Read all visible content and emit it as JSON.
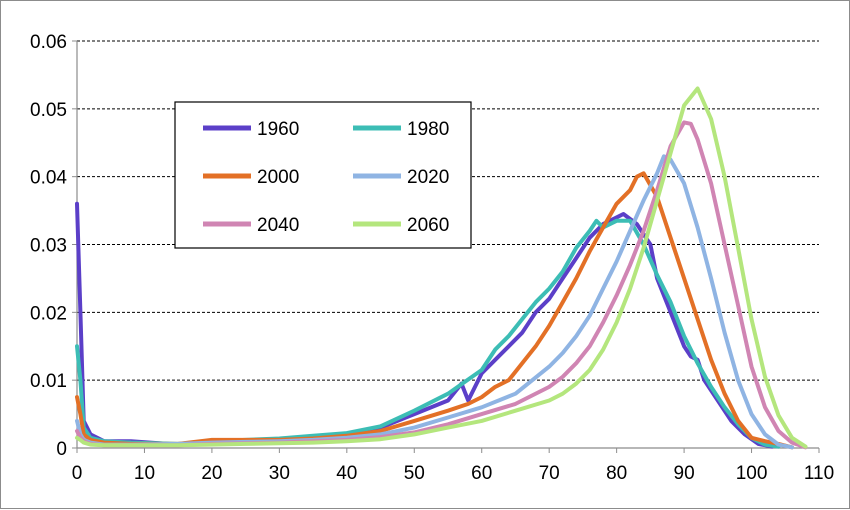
{
  "chart_data": {
    "type": "line",
    "title": "",
    "xlabel": "",
    "ylabel": "",
    "xlim": [
      0,
      110
    ],
    "ylim": [
      0,
      0.06
    ],
    "x_ticks": [
      "0",
      "10",
      "20",
      "30",
      "40",
      "50",
      "60",
      "70",
      "80",
      "90",
      "100",
      "110"
    ],
    "y_ticks": [
      "0",
      "0.01",
      "0.02",
      "0.03",
      "0.04",
      "0.05",
      "0.06"
    ],
    "grid": "horizontal dashed",
    "legend_position": "inside upper-left, 3 rows x 2 columns",
    "series": [
      {
        "name": "1960",
        "color": "#5b3fc8",
        "points": [
          [
            0,
            0.036
          ],
          [
            0.5,
            0.02
          ],
          [
            1,
            0.004
          ],
          [
            2,
            0.002
          ],
          [
            4,
            0.001
          ],
          [
            8,
            0.001
          ],
          [
            15,
            0.0005
          ],
          [
            20,
            0.0008
          ],
          [
            25,
            0.001
          ],
          [
            30,
            0.0012
          ],
          [
            35,
            0.0015
          ],
          [
            40,
            0.002
          ],
          [
            45,
            0.003
          ],
          [
            50,
            0.005
          ],
          [
            55,
            0.007
          ],
          [
            57,
            0.0095
          ],
          [
            58,
            0.007
          ],
          [
            60,
            0.011
          ],
          [
            62,
            0.013
          ],
          [
            64,
            0.015
          ],
          [
            66,
            0.017
          ],
          [
            68,
            0.02
          ],
          [
            70,
            0.022
          ],
          [
            72,
            0.025
          ],
          [
            74,
            0.028
          ],
          [
            76,
            0.031
          ],
          [
            78,
            0.033
          ],
          [
            80,
            0.034
          ],
          [
            81,
            0.0345
          ],
          [
            83,
            0.033
          ],
          [
            85,
            0.03
          ],
          [
            86,
            0.025
          ],
          [
            88,
            0.02
          ],
          [
            90,
            0.015
          ],
          [
            91,
            0.0135
          ],
          [
            92,
            0.013
          ],
          [
            93,
            0.01
          ],
          [
            95,
            0.007
          ],
          [
            97,
            0.004
          ],
          [
            99,
            0.002
          ],
          [
            101,
            0.0006
          ],
          [
            103,
            0.0002
          ]
        ]
      },
      {
        "name": "1980",
        "color": "#3cbdb5",
        "points": [
          [
            0,
            0.015
          ],
          [
            0.5,
            0.01
          ],
          [
            1,
            0.003
          ],
          [
            2,
            0.0015
          ],
          [
            4,
            0.001
          ],
          [
            8,
            0.0008
          ],
          [
            15,
            0.0006
          ],
          [
            20,
            0.001
          ],
          [
            25,
            0.0012
          ],
          [
            30,
            0.0014
          ],
          [
            35,
            0.0018
          ],
          [
            40,
            0.0022
          ],
          [
            45,
            0.0032
          ],
          [
            50,
            0.0055
          ],
          [
            55,
            0.008
          ],
          [
            60,
            0.0115
          ],
          [
            62,
            0.0145
          ],
          [
            64,
            0.0165
          ],
          [
            66,
            0.019
          ],
          [
            68,
            0.0215
          ],
          [
            70,
            0.0235
          ],
          [
            72,
            0.026
          ],
          [
            74,
            0.0295
          ],
          [
            76,
            0.032
          ],
          [
            77,
            0.0335
          ],
          [
            78,
            0.0325
          ],
          [
            80,
            0.0335
          ],
          [
            82,
            0.0335
          ],
          [
            84,
            0.03
          ],
          [
            86,
            0.0255
          ],
          [
            88,
            0.0215
          ],
          [
            90,
            0.0165
          ],
          [
            92,
            0.0125
          ],
          [
            94,
            0.009
          ],
          [
            96,
            0.006
          ],
          [
            98,
            0.0035
          ],
          [
            100,
            0.0015
          ],
          [
            102,
            0.0005
          ],
          [
            104,
            0.0002
          ]
        ]
      },
      {
        "name": "2000",
        "color": "#e37026",
        "points": [
          [
            0,
            0.0075
          ],
          [
            0.5,
            0.005
          ],
          [
            1,
            0.002
          ],
          [
            2,
            0.0012
          ],
          [
            4,
            0.0008
          ],
          [
            8,
            0.0006
          ],
          [
            15,
            0.0006
          ],
          [
            20,
            0.0012
          ],
          [
            25,
            0.0012
          ],
          [
            30,
            0.0012
          ],
          [
            35,
            0.0014
          ],
          [
            40,
            0.0018
          ],
          [
            45,
            0.0025
          ],
          [
            50,
            0.004
          ],
          [
            55,
            0.0055
          ],
          [
            58,
            0.0065
          ],
          [
            60,
            0.0075
          ],
          [
            62,
            0.009
          ],
          [
            64,
            0.01
          ],
          [
            66,
            0.0125
          ],
          [
            68,
            0.015
          ],
          [
            70,
            0.018
          ],
          [
            72,
            0.0215
          ],
          [
            74,
            0.025
          ],
          [
            76,
            0.029
          ],
          [
            78,
            0.0325
          ],
          [
            80,
            0.036
          ],
          [
            82,
            0.038
          ],
          [
            83,
            0.04
          ],
          [
            84,
            0.0405
          ],
          [
            86,
            0.037
          ],
          [
            88,
            0.031
          ],
          [
            90,
            0.025
          ],
          [
            92,
            0.019
          ],
          [
            94,
            0.013
          ],
          [
            96,
            0.008
          ],
          [
            98,
            0.004
          ],
          [
            100,
            0.0015
          ],
          [
            102,
            0.001
          ],
          [
            104,
            0.0006
          ],
          [
            106,
            0.0001
          ]
        ]
      },
      {
        "name": "2020",
        "color": "#8fb4e3",
        "points": [
          [
            0,
            0.004
          ],
          [
            0.5,
            0.002
          ],
          [
            1,
            0.0012
          ],
          [
            2,
            0.0008
          ],
          [
            4,
            0.0005
          ],
          [
            8,
            0.0005
          ],
          [
            15,
            0.0006
          ],
          [
            20,
            0.0008
          ],
          [
            25,
            0.0009
          ],
          [
            30,
            0.001
          ],
          [
            35,
            0.0012
          ],
          [
            40,
            0.0015
          ],
          [
            45,
            0.002
          ],
          [
            50,
            0.003
          ],
          [
            55,
            0.0045
          ],
          [
            60,
            0.006
          ],
          [
            65,
            0.008
          ],
          [
            70,
            0.012
          ],
          [
            72,
            0.014
          ],
          [
            74,
            0.0165
          ],
          [
            76,
            0.0195
          ],
          [
            78,
            0.0235
          ],
          [
            80,
            0.0275
          ],
          [
            82,
            0.032
          ],
          [
            84,
            0.0365
          ],
          [
            86,
            0.0405
          ],
          [
            87,
            0.043
          ],
          [
            88,
            0.0425
          ],
          [
            90,
            0.039
          ],
          [
            92,
            0.0325
          ],
          [
            94,
            0.025
          ],
          [
            96,
            0.017
          ],
          [
            98,
            0.01
          ],
          [
            100,
            0.005
          ],
          [
            102,
            0.002
          ],
          [
            104,
            0.0005
          ],
          [
            106,
            0.0001
          ]
        ]
      },
      {
        "name": "2040",
        "color": "#d085b3",
        "points": [
          [
            0,
            0.0025
          ],
          [
            0.5,
            0.0015
          ],
          [
            1,
            0.001
          ],
          [
            2,
            0.0006
          ],
          [
            4,
            0.0004
          ],
          [
            8,
            0.0004
          ],
          [
            15,
            0.0004
          ],
          [
            20,
            0.0006
          ],
          [
            25,
            0.0007
          ],
          [
            30,
            0.0008
          ],
          [
            35,
            0.001
          ],
          [
            40,
            0.0012
          ],
          [
            45,
            0.0016
          ],
          [
            50,
            0.0023
          ],
          [
            55,
            0.0035
          ],
          [
            60,
            0.005
          ],
          [
            65,
            0.0065
          ],
          [
            70,
            0.009
          ],
          [
            72,
            0.0105
          ],
          [
            74,
            0.0125
          ],
          [
            76,
            0.015
          ],
          [
            78,
            0.0185
          ],
          [
            80,
            0.0225
          ],
          [
            82,
            0.027
          ],
          [
            84,
            0.032
          ],
          [
            86,
            0.038
          ],
          [
            88,
            0.0445
          ],
          [
            90,
            0.048
          ],
          [
            91,
            0.0478
          ],
          [
            92,
            0.0455
          ],
          [
            94,
            0.039
          ],
          [
            96,
            0.03
          ],
          [
            98,
            0.021
          ],
          [
            100,
            0.012
          ],
          [
            102,
            0.006
          ],
          [
            104,
            0.0025
          ],
          [
            106,
            0.0008
          ],
          [
            108,
            0.0001
          ]
        ]
      },
      {
        "name": "2060",
        "color": "#b4e67d",
        "points": [
          [
            0,
            0.0015
          ],
          [
            0.5,
            0.0012
          ],
          [
            1,
            0.0008
          ],
          [
            2,
            0.0005
          ],
          [
            4,
            0.0004
          ],
          [
            8,
            0.0004
          ],
          [
            15,
            0.0004
          ],
          [
            20,
            0.0005
          ],
          [
            25,
            0.0006
          ],
          [
            30,
            0.0007
          ],
          [
            35,
            0.0008
          ],
          [
            40,
            0.001
          ],
          [
            45,
            0.0013
          ],
          [
            50,
            0.002
          ],
          [
            55,
            0.003
          ],
          [
            60,
            0.004
          ],
          [
            65,
            0.0055
          ],
          [
            70,
            0.007
          ],
          [
            72,
            0.008
          ],
          [
            74,
            0.0095
          ],
          [
            76,
            0.0115
          ],
          [
            78,
            0.0145
          ],
          [
            80,
            0.0185
          ],
          [
            82,
            0.0235
          ],
          [
            84,
            0.0295
          ],
          [
            86,
            0.0365
          ],
          [
            88,
            0.0435
          ],
          [
            90,
            0.0505
          ],
          [
            92,
            0.053
          ],
          [
            94,
            0.0485
          ],
          [
            96,
            0.04
          ],
          [
            98,
            0.0295
          ],
          [
            100,
            0.019
          ],
          [
            102,
            0.0105
          ],
          [
            104,
            0.0048
          ],
          [
            106,
            0.0015
          ],
          [
            108,
            0.0002
          ]
        ]
      }
    ]
  }
}
